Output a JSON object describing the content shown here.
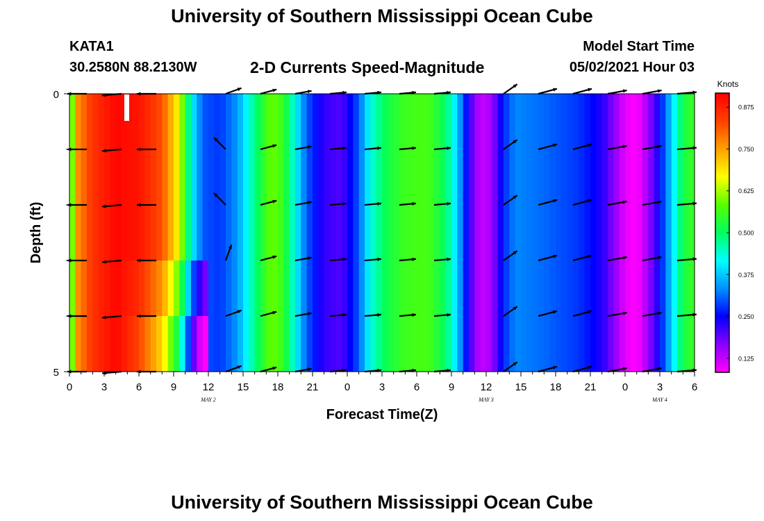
{
  "header": {
    "title_top": "University of Southern Mississippi Ocean Cube",
    "title_bottom": "University of Southern Mississippi Ocean Cube",
    "station": "KATA1",
    "latlon": "30.2580N  88.2130W",
    "subtitle": "2-D Currents Speed-Magnitude",
    "model_start_label": "Model Start Time",
    "model_start_value": "05/02/2021 Hour 03"
  },
  "colors": {
    "scale": [
      "#ff00ff",
      "#8a00ff",
      "#0000ff",
      "#0090ff",
      "#00ffff",
      "#00ff60",
      "#55ff00",
      "#ffff00",
      "#ffa000",
      "#ff4000",
      "#ff0000"
    ],
    "arrow": "#000000",
    "frame": "#000000"
  },
  "chart_data": {
    "type": "heatmap",
    "title": "2-D Currents Speed-Magnitude",
    "xlabel": "Forecast Time(Z)",
    "ylabel": "Depth (ft)",
    "y_range": [
      0,
      5
    ],
    "y_ticks": [
      "0",
      "5"
    ],
    "x_range_hours": [
      0,
      54
    ],
    "x_tick_labels": [
      "0",
      "3",
      "6",
      "9",
      "12",
      "15",
      "18",
      "21",
      "0",
      "3",
      "6",
      "9",
      "12",
      "15",
      "18",
      "21",
      "0",
      "3",
      "6"
    ],
    "date_labels": [
      {
        "label": "MAY 2",
        "hour": 12
      },
      {
        "label": "MAY 3",
        "hour": 36
      },
      {
        "label": "MAY 4",
        "hour": 51
      }
    ],
    "colorbar": {
      "unit": "Knots",
      "min": 0.083,
      "max": 0.917,
      "ticks": [
        "0.125",
        "0.250",
        "0.375",
        "0.500",
        "0.625",
        "0.750",
        "0.875"
      ],
      "tick_values": [
        0.125,
        0.25,
        0.375,
        0.5,
        0.625,
        0.75,
        0.875
      ]
    },
    "depth_levels": [
      0,
      1,
      2,
      3,
      4,
      5
    ],
    "surface_speed_profile": [
      {
        "hour": 0,
        "speed": 0.45
      },
      {
        "hour": 0.5,
        "speed": 0.75
      },
      {
        "hour": 2,
        "speed": 0.85
      },
      {
        "hour": 4,
        "speed": 0.91
      },
      {
        "hour": 6,
        "speed": 0.89
      },
      {
        "hour": 8,
        "speed": 0.82
      },
      {
        "hour": 9.5,
        "speed": 0.66
      },
      {
        "hour": 10.5,
        "speed": 0.42
      },
      {
        "hour": 11.5,
        "speed": 0.3
      },
      {
        "hour": 13,
        "speed": 0.28
      },
      {
        "hour": 14.5,
        "speed": 0.34
      },
      {
        "hour": 16,
        "speed": 0.48
      },
      {
        "hour": 17.5,
        "speed": 0.6
      },
      {
        "hour": 18.5,
        "speed": 0.55
      },
      {
        "hour": 19.5,
        "speed": 0.42
      },
      {
        "hour": 20.5,
        "speed": 0.3
      },
      {
        "hour": 22,
        "speed": 0.22
      },
      {
        "hour": 23.5,
        "speed": 0.2
      },
      {
        "hour": 25,
        "speed": 0.3
      },
      {
        "hour": 26,
        "speed": 0.43
      },
      {
        "hour": 27.5,
        "speed": 0.52
      },
      {
        "hour": 29,
        "speed": 0.56
      },
      {
        "hour": 31,
        "speed": 0.57
      },
      {
        "hour": 32.5,
        "speed": 0.5
      },
      {
        "hour": 33.5,
        "speed": 0.38
      },
      {
        "hour": 34.5,
        "speed": 0.22
      },
      {
        "hour": 35.5,
        "speed": 0.12
      },
      {
        "hour": 36.5,
        "speed": 0.15
      },
      {
        "hour": 37.5,
        "speed": 0.27
      },
      {
        "hour": 38.5,
        "speed": 0.33
      },
      {
        "hour": 41,
        "speed": 0.31
      },
      {
        "hour": 44,
        "speed": 0.28
      },
      {
        "hour": 46,
        "speed": 0.23
      },
      {
        "hour": 47,
        "speed": 0.17
      },
      {
        "hour": 48,
        "speed": 0.1
      },
      {
        "hour": 49,
        "speed": 0.08
      },
      {
        "hour": 50,
        "speed": 0.15
      },
      {
        "hour": 51,
        "speed": 0.25
      },
      {
        "hour": 52,
        "speed": 0.38
      },
      {
        "hour": 53,
        "speed": 0.52
      },
      {
        "hour": 54,
        "speed": 0.56
      }
    ],
    "vector_hours": [
      1.5,
      4.5,
      7.5,
      13.5,
      16.5,
      19.5,
      22.5,
      25.5,
      28.5,
      31.5,
      37.5,
      40.5,
      43.5,
      46.5,
      49.5,
      52.5
    ],
    "vector_directions_deg": [
      180,
      185,
      180,
      20,
      15,
      10,
      5,
      5,
      5,
      5,
      35,
      15,
      15,
      10,
      10,
      5
    ]
  }
}
